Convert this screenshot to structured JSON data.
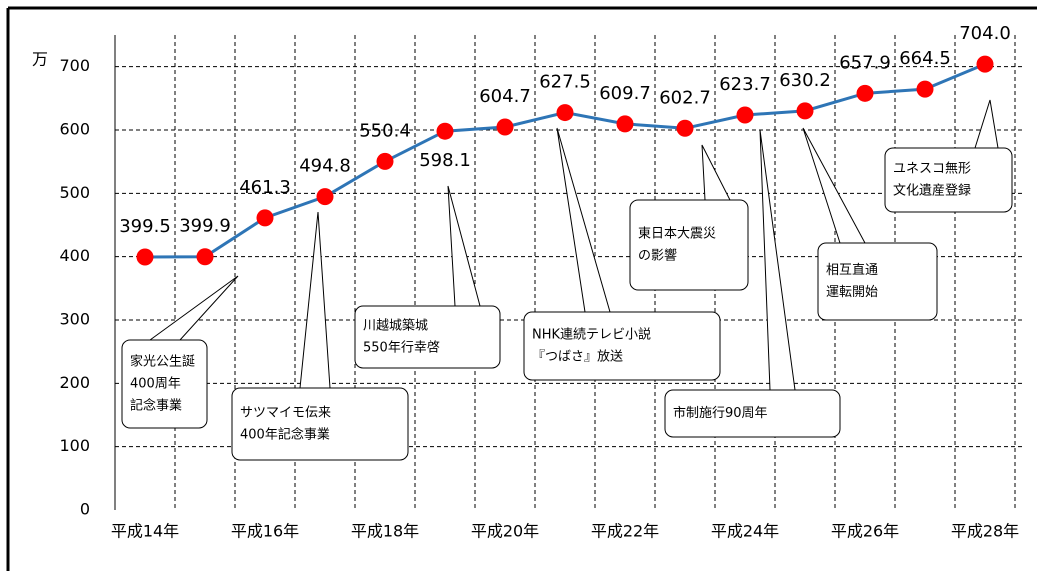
{
  "chart_data": {
    "type": "line",
    "y_unit_label": "万",
    "categories": [
      "平成14年",
      null,
      "平成16年",
      null,
      "平成18年",
      null,
      "平成20年",
      null,
      "平成22年",
      null,
      "平成24年",
      null,
      "平成26年",
      null,
      "平成28年"
    ],
    "values": [
      399.5,
      399.9,
      461.3,
      494.8,
      550.4,
      598.1,
      604.7,
      627.5,
      609.7,
      602.7,
      623.7,
      630.2,
      657.9,
      664.5,
      704.0
    ],
    "value_labels": [
      "399.5",
      "399.9",
      "461.3",
      "494.8",
      "550.4",
      "598.1",
      "604.7",
      "627.5",
      "609.7",
      "602.7",
      "623.7",
      "630.2",
      "657.9",
      "664.5",
      "704.0"
    ],
    "line_color": "#2e75b6",
    "marker_color": "#ff0000",
    "ylim": [
      0,
      750
    ],
    "yticks": [
      0,
      100,
      200,
      300,
      400,
      500,
      600,
      700
    ],
    "grid": true,
    "annotations": [
      {
        "lines": [
          "家光公生誕",
          "400周年",
          "記念事業"
        ]
      },
      {
        "lines": [
          "サツマイモ伝来",
          "400年記念事業"
        ]
      },
      {
        "lines": [
          "川越城築城",
          "550年行幸啓"
        ]
      },
      {
        "lines": [
          "NHK連続テレビ小説",
          "『つばさ』放送"
        ]
      },
      {
        "lines": [
          "東日本大震災",
          "の影響"
        ]
      },
      {
        "lines": [
          "市制施行90周年"
        ]
      },
      {
        "lines": [
          "相互直通",
          "運転開始"
        ]
      },
      {
        "lines": [
          "ユネスコ無形",
          "文化遺産登録"
        ]
      }
    ]
  }
}
